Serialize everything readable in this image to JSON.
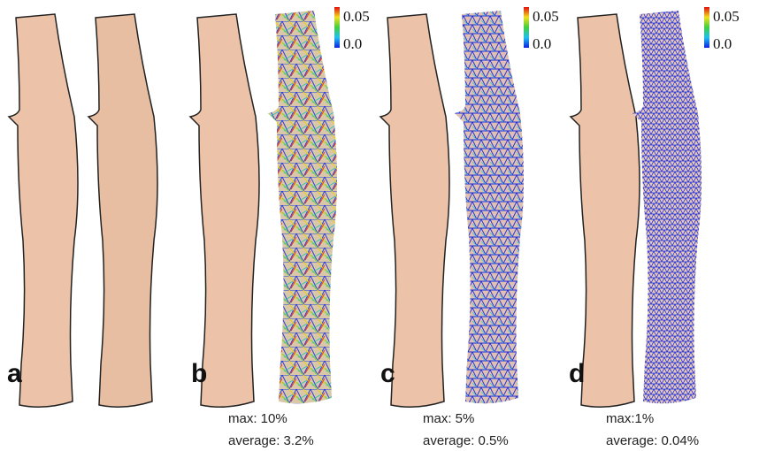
{
  "panels": [
    {
      "label": "a"
    },
    {
      "label": "b",
      "colorbar": {
        "max": "0.05",
        "min": "0.0"
      },
      "stats": {
        "max": "max: 10%",
        "average": "average: 3.2%"
      }
    },
    {
      "label": "c",
      "colorbar": {
        "max": "0.05",
        "min": "0.0"
      },
      "stats": {
        "max": "max: 5%",
        "average": "average: 0.5%"
      }
    },
    {
      "label": "d",
      "colorbar": {
        "max": "0.05",
        "min": "0.0"
      },
      "stats": {
        "max": "max:1%",
        "average": "average: 0.04%"
      }
    }
  ]
}
